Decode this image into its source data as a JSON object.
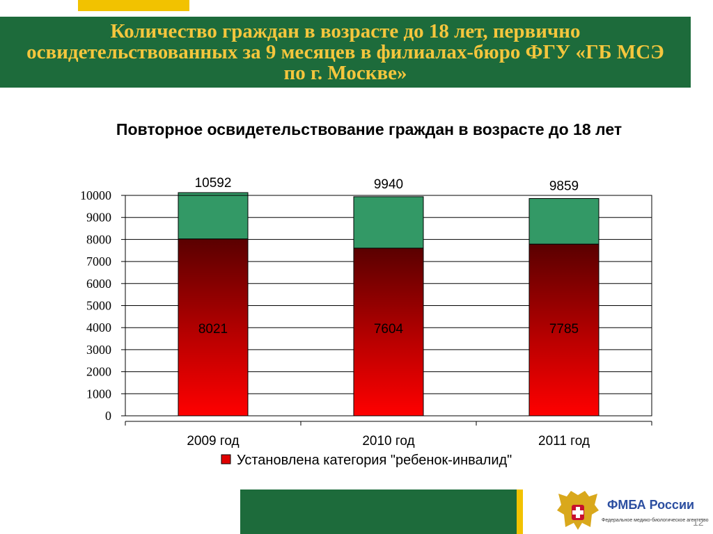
{
  "header": {
    "title": "Количество граждан в возрасте до 18 лет, первично освидетельствованных за 9 месяцев в филиалах-бюро ФГУ «ГБ МСЭ по г. Москве»"
  },
  "chart_data": {
    "type": "bar",
    "stacked": true,
    "title": "Повторное освидетельствование граждан в возрасте до 18 лет",
    "categories": [
      "2009 год",
      "2010 год",
      "2011 год"
    ],
    "series": [
      {
        "name": "Установлена категория \"ребенок-инвалид\"",
        "values": [
          8021,
          7604,
          7785
        ],
        "color": "#e00000"
      }
    ],
    "totals": [
      10592,
      9940,
      9859
    ],
    "total_color": "#339966",
    "ylim": [
      0,
      10000
    ],
    "yticks": [
      0,
      1000,
      2000,
      3000,
      4000,
      5000,
      6000,
      7000,
      8000,
      9000,
      10000
    ],
    "grid": true,
    "legend_position": "bottom"
  },
  "footer": {
    "org_name": "ФМБА России",
    "org_subtitle": "Федеральное медико-биологическое агентство",
    "page_number": "12"
  },
  "colors": {
    "header_bg": "#1d6b3b",
    "header_text": "#f4c63d",
    "accent": "#f2c200"
  },
  "icons": {
    "emblem": "double-headed-eagle-emblem-icon"
  }
}
